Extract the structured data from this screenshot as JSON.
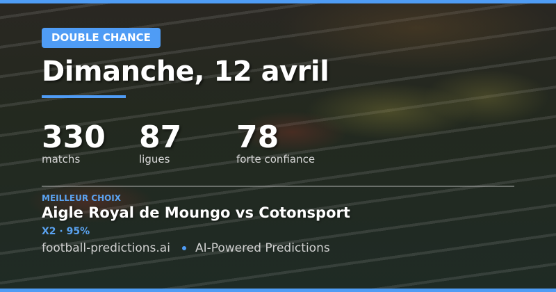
{
  "badge": "DOUBLE CHANCE",
  "title": "Dimanche, 12 avril",
  "stats": [
    {
      "value": "330",
      "label": "matchs"
    },
    {
      "value": "87",
      "label": "ligues"
    },
    {
      "value": "78",
      "label": "forte confiance"
    }
  ],
  "best": {
    "kicker": "MEILLEUR CHOIX",
    "match": "Aigle Royal de Moungo vs Cotonsport",
    "pick": "X2 · 95%"
  },
  "footer": {
    "site": "football-predictions.ai",
    "tagline": "AI-Powered Predictions"
  },
  "colors": {
    "accent": "#4f9cf5"
  }
}
